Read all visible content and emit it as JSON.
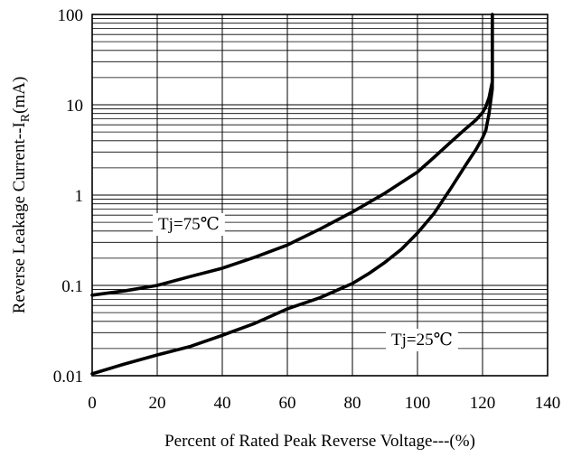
{
  "chart_data": {
    "type": "line",
    "title": "",
    "xlabel": "Percent of Rated Peak Reverse Voltage---(%)",
    "ylabel_main": "Reverse Leakage Current--I",
    "ylabel_sub": "R",
    "ylabel_tail": "(mA)",
    "x_scale": "linear",
    "y_scale": "log",
    "xlim": [
      0,
      140
    ],
    "ylim": [
      0.01,
      100
    ],
    "x_ticks": [
      0,
      20,
      40,
      60,
      80,
      100,
      120,
      140
    ],
    "x_tick_labels": [
      "0",
      "20",
      "40",
      "60",
      "80",
      "100",
      "120",
      "140"
    ],
    "y_ticks": [
      0.01,
      0.1,
      1,
      10,
      100
    ],
    "y_tick_labels": [
      "0.01",
      "0.1",
      "1",
      "10",
      "100"
    ],
    "grid": true,
    "series": [
      {
        "name": "Tj=75°C",
        "x": [
          0,
          10,
          20,
          30,
          40,
          50,
          60,
          70,
          80,
          90,
          100,
          105,
          110,
          115,
          118,
          120,
          121,
          122,
          123,
          123
        ],
        "y": [
          0.078,
          0.087,
          0.1,
          0.125,
          0.155,
          0.205,
          0.28,
          0.42,
          0.65,
          1.05,
          1.8,
          2.6,
          3.8,
          5.5,
          6.8,
          8.2,
          9.5,
          12,
          18,
          100
        ]
      },
      {
        "name": "Tj=25°C",
        "x": [
          0,
          10,
          20,
          30,
          40,
          50,
          60,
          70,
          80,
          85,
          90,
          95,
          100,
          105,
          110,
          115,
          118,
          120,
          121,
          122,
          123,
          123
        ],
        "y": [
          0.0105,
          0.0135,
          0.017,
          0.021,
          0.028,
          0.038,
          0.055,
          0.073,
          0.105,
          0.135,
          0.18,
          0.25,
          0.38,
          0.62,
          1.15,
          2.2,
          3.2,
          4.3,
          5.2,
          8,
          15,
          100
        ]
      }
    ],
    "annotations": [
      {
        "text": "Tj=75℃"
      },
      {
        "text": "Tj=25℃"
      }
    ]
  }
}
